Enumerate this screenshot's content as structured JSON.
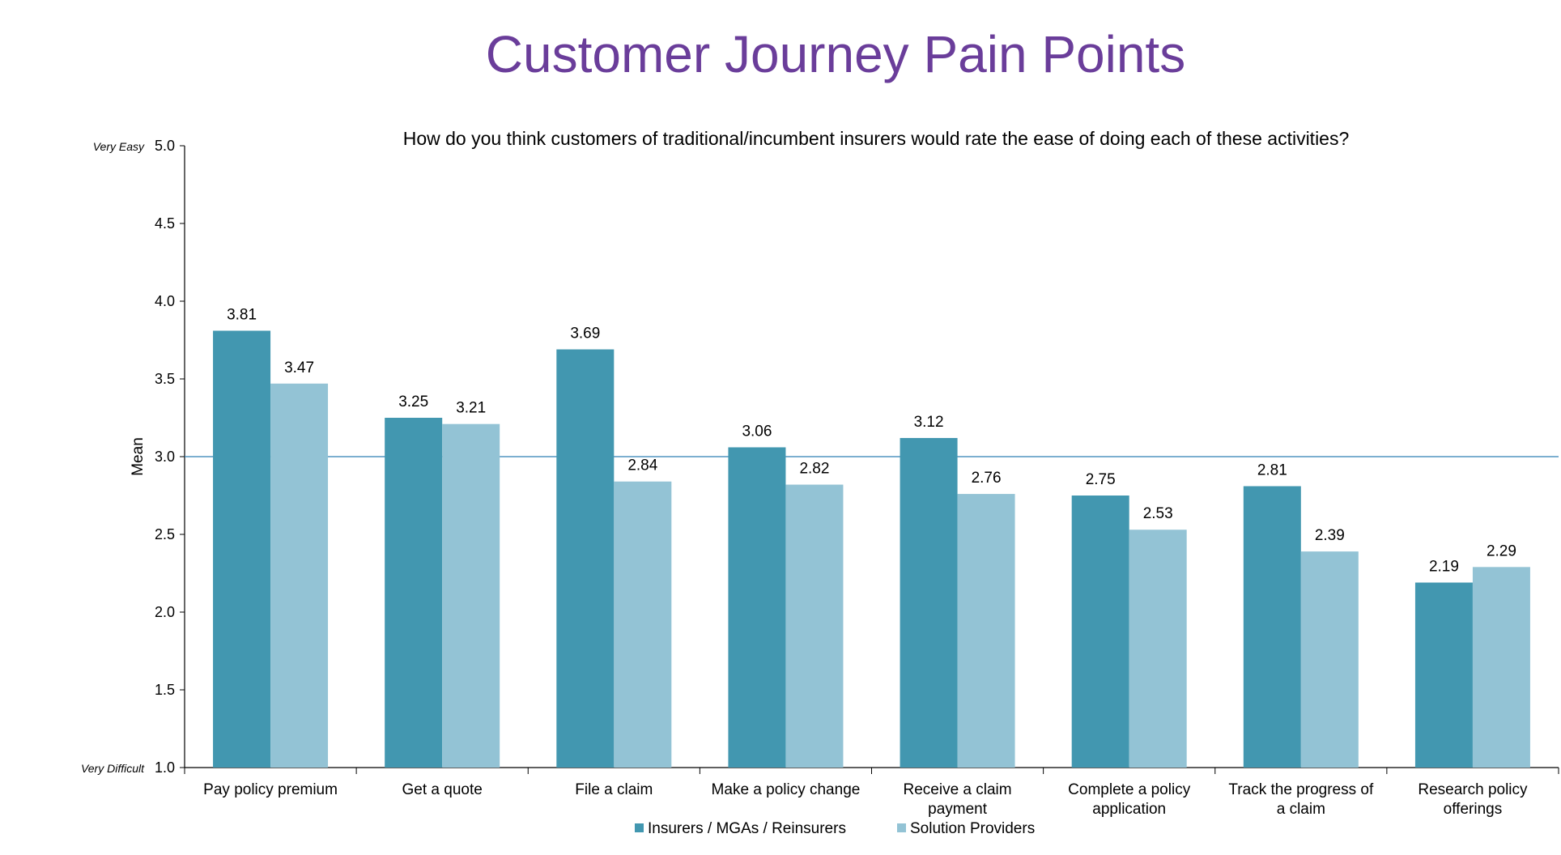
{
  "page": {
    "title": "Customer Journey Pain Points"
  },
  "chart_data": {
    "type": "bar",
    "title": "How do you think customers of traditional/incumbent insurers would rate the ease of doing each of these activities?",
    "xlabel": "",
    "ylabel": "Mean",
    "ylim": [
      1.0,
      5.0
    ],
    "yticks": [
      "1.0",
      "1.5",
      "2.0",
      "2.5",
      "3.0",
      "3.5",
      "4.0",
      "4.5",
      "5.0"
    ],
    "y_anchor_top": "Very Easy",
    "y_anchor_bottom": "Very Difficult",
    "reference_line": 3.0,
    "grid": false,
    "legend_position": "bottom",
    "categories": [
      [
        "Pay policy premium"
      ],
      [
        "Get a quote"
      ],
      [
        "File a claim"
      ],
      [
        "Make a policy change"
      ],
      [
        "Receive a claim",
        "payment"
      ],
      [
        "Complete a policy",
        "application"
      ],
      [
        "Track the progress of",
        "a claim"
      ],
      [
        "Research policy",
        "offerings"
      ]
    ],
    "series": [
      {
        "name": "Insurers / MGAs / Reinsurers",
        "color": "#4297b0",
        "values": [
          3.81,
          3.25,
          3.69,
          3.06,
          3.12,
          2.75,
          2.81,
          2.19
        ],
        "labels": [
          "3.81",
          "3.25",
          "3.69",
          "3.06",
          "3.12",
          "2.75",
          "2.81",
          "2.19"
        ]
      },
      {
        "name": "Solution Providers",
        "color": "#93c3d5",
        "values": [
          3.47,
          3.21,
          2.84,
          2.82,
          2.76,
          2.53,
          2.39,
          2.29
        ],
        "labels": [
          "3.47",
          "3.21",
          "2.84",
          "2.82",
          "2.76",
          "2.53",
          "2.39",
          "2.29"
        ]
      }
    ],
    "reference_line_color": "#2e7fb5"
  }
}
